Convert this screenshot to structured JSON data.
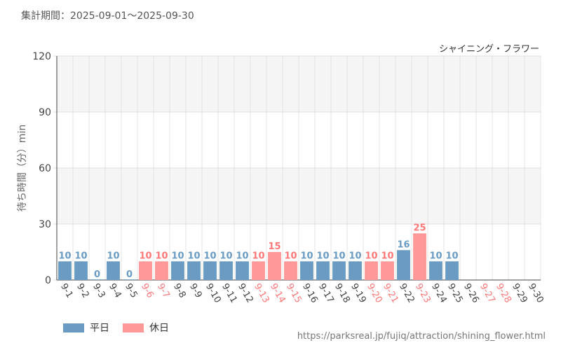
{
  "header": {
    "period_label": "集計期間：2025-09-01～2025-09-30"
  },
  "chart_data": {
    "type": "bar",
    "title": "シャイニング・フラワー",
    "ylabel": "待ち時間（分）min",
    "ylim": [
      0,
      120
    ],
    "yticks": [
      0,
      30,
      60,
      90,
      120
    ],
    "categories": [
      "9-1",
      "9-2",
      "9-3",
      "9-4",
      "9-5",
      "9-6",
      "9-7",
      "9-8",
      "9-9",
      "9-10",
      "9-11",
      "9-12",
      "9-13",
      "9-14",
      "9-15",
      "9-16",
      "9-17",
      "9-18",
      "9-19",
      "9-20",
      "9-21",
      "9-22",
      "9-23",
      "9-24",
      "9-25",
      "9-26",
      "9-27",
      "9-28",
      "9-29",
      "9-30"
    ],
    "values": [
      10,
      10,
      0,
      10,
      0,
      10,
      10,
      10,
      10,
      10,
      10,
      10,
      10,
      15,
      10,
      10,
      10,
      10,
      10,
      10,
      10,
      16,
      25,
      10,
      10,
      null,
      null,
      null,
      null,
      null
    ],
    "day_type": [
      "weekday",
      "weekday",
      "weekday",
      "weekday",
      "weekday",
      "holiday",
      "holiday",
      "weekday",
      "weekday",
      "weekday",
      "weekday",
      "weekday",
      "holiday",
      "holiday",
      "holiday",
      "weekday",
      "weekday",
      "weekday",
      "weekday",
      "holiday",
      "holiday",
      "weekday",
      "holiday",
      "weekday",
      "weekday",
      "weekday",
      "holiday",
      "holiday",
      "weekday",
      "weekday"
    ],
    "legend": [
      {
        "key": "weekday",
        "label": "平日",
        "color": "#6a9bc3"
      },
      {
        "key": "holiday",
        "label": "休日",
        "color": "#ff9999"
      }
    ],
    "holiday_label_color": "#ff7777",
    "weekday_label_color": "#444444"
  },
  "footer": {
    "source": "https://parksreal.jp/fujiq/attraction/shining_flower.html"
  }
}
